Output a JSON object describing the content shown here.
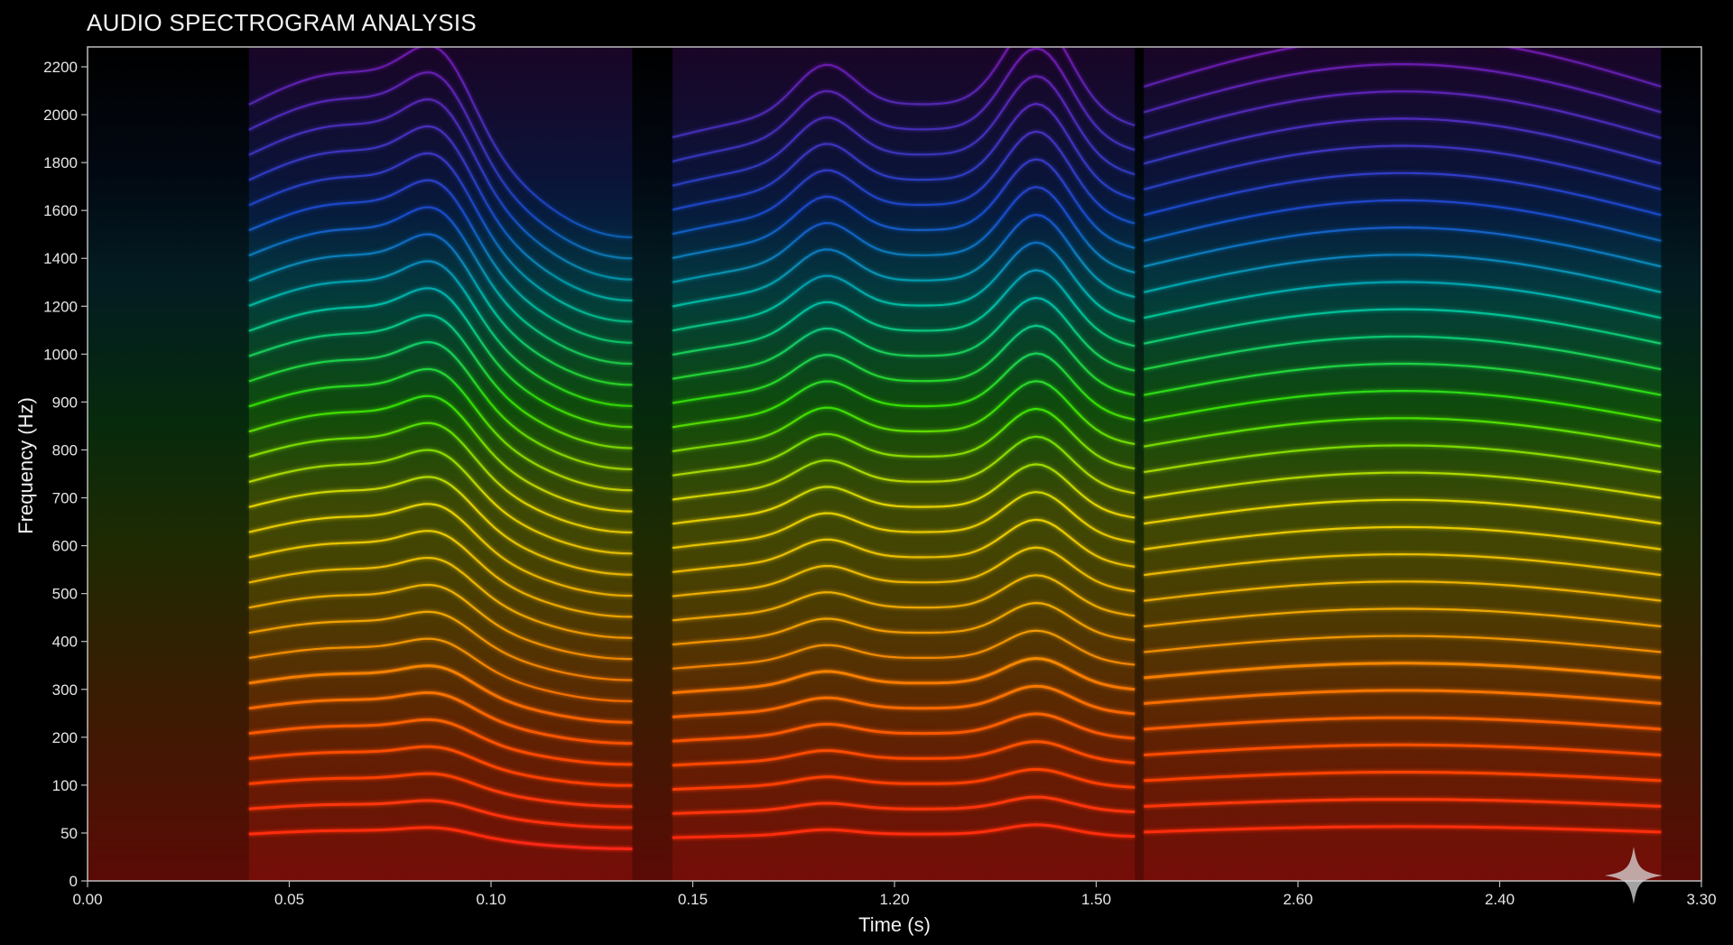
{
  "title": "AUDIO SPECTROGRAM ANALYSIS",
  "chart_data": {
    "type": "heatmap",
    "title": "AUDIO SPECTROGRAM ANALYSIS",
    "xlabel": "Time (s)",
    "ylabel": "Frequency (Hz)",
    "x_tick_labels": [
      "0.00",
      "0.05",
      "0.10",
      "0.15",
      "1.20",
      "1.50",
      "2.60",
      "2.40",
      "3.30"
    ],
    "y_tick_labels": [
      "0",
      "50",
      "100",
      "200",
      "300",
      "400",
      "500",
      "600",
      "700",
      "800",
      "900",
      "1000",
      "1200",
      "1400",
      "1600",
      "1800",
      "2000",
      "2200"
    ],
    "colormap": [
      "#ff1a1a",
      "#ff7a00",
      "#ffe000",
      "#3cff00",
      "#00e0c0",
      "#1e5bff",
      "#a020f0"
    ],
    "background_color": "#000000",
    "grid": false,
    "legend": "none",
    "segments_s": [
      {
        "start": 0.04,
        "end": 0.135
      },
      {
        "start": 0.145,
        "end": 1.71
      },
      {
        "start": 1.76,
        "end": 3.12
      }
    ]
  },
  "watermark": "sparkle-icon"
}
